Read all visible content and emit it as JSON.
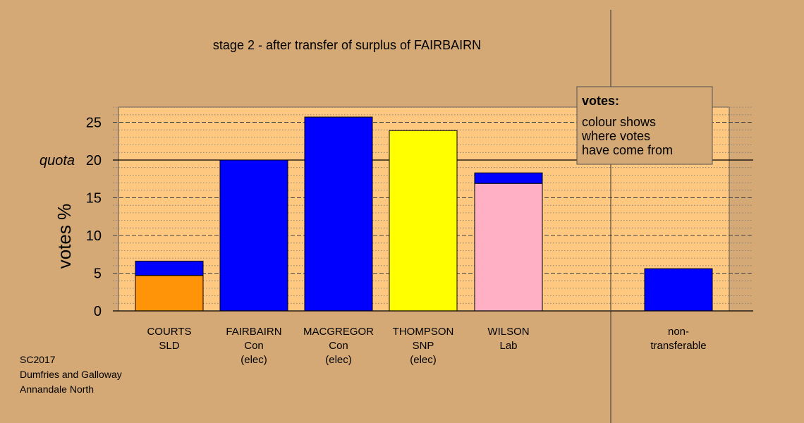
{
  "chart_data": {
    "type": "bar",
    "stacked": true,
    "title": "stage 2 - after transfer of surplus of FAIRBAIRN",
    "ylabel": "votes %",
    "quota_label": "quota",
    "quota": 20,
    "ylim": [
      0,
      27
    ],
    "yticks": [
      0,
      5,
      10,
      15,
      20,
      25
    ],
    "grid": true,
    "categories": [
      {
        "lines": [
          "COURTS",
          "SLD"
        ]
      },
      {
        "lines": [
          "FAIRBAIRN",
          "Con",
          "(elec)"
        ]
      },
      {
        "lines": [
          "MACGREGOR",
          "Con",
          "(elec)"
        ]
      },
      {
        "lines": [
          "THOMPSON",
          "SNP",
          "(elec)"
        ]
      },
      {
        "lines": [
          "WILSON",
          "Lab"
        ]
      },
      {
        "lines": [
          "non-",
          "transferable"
        ]
      }
    ],
    "bars": [
      {
        "segments": [
          {
            "value": 4.7,
            "color": "#ff9408"
          },
          {
            "value": 1.9,
            "color": "#0000ff"
          }
        ]
      },
      {
        "segments": [
          {
            "value": 20.0,
            "color": "#0000ff"
          }
        ]
      },
      {
        "segments": [
          {
            "value": 25.7,
            "color": "#0000ff"
          }
        ]
      },
      {
        "segments": [
          {
            "value": 23.9,
            "color": "#ffff00"
          }
        ]
      },
      {
        "segments": [
          {
            "value": 16.9,
            "color": "#ffb0c4"
          },
          {
            "value": 1.4,
            "color": "#0000ff"
          }
        ]
      },
      {
        "segments": [
          {
            "value": 5.6,
            "color": "#0000ff"
          }
        ]
      }
    ],
    "legend": {
      "title": "votes:",
      "lines": [
        "colour shows",
        "where votes",
        "have come from"
      ],
      "placement": "top-right"
    }
  },
  "footer": {
    "line1": "SC2017",
    "line2": "Dumfries and Galloway",
    "line3": "Annandale North"
  },
  "colors": {
    "background": "#d4a976",
    "plot_background": "#ffc880"
  }
}
